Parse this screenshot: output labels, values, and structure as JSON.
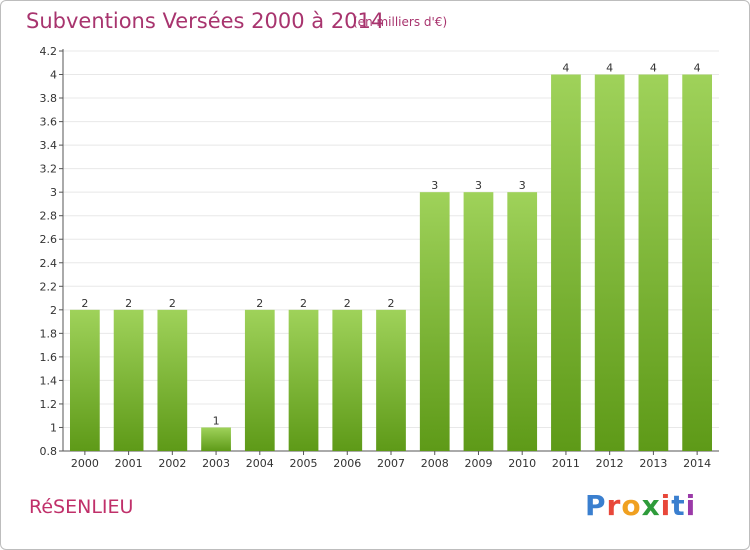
{
  "header": {
    "title": "Subventions Versées 2000 à 2014",
    "subtitle": "(en milliers d'€)"
  },
  "footer": {
    "commune": "RéSENLIEU",
    "logo_text": "Proxiti",
    "logo_colors": [
      "#3a7fcf",
      "#e8473a",
      "#f0a020",
      "#2e9b3a",
      "#e8473a",
      "#3a7fcf",
      "#9b3aa8"
    ]
  },
  "colors": {
    "bar_top": "#9fd25a",
    "bar_bottom": "#5e9a18",
    "title": "#a8346e",
    "grid": "#e8e8e8",
    "axis": "#555555"
  },
  "chart_data": {
    "type": "bar",
    "categories": [
      "2000",
      "2001",
      "2002",
      "2003",
      "2004",
      "2005",
      "2006",
      "2007",
      "2008",
      "2009",
      "2010",
      "2011",
      "2012",
      "2013",
      "2014"
    ],
    "values": [
      2,
      2,
      2,
      1,
      2,
      2,
      2,
      2,
      3,
      3,
      3,
      4,
      4,
      4,
      4
    ],
    "data_labels": [
      "2",
      "2",
      "2",
      "1",
      "2",
      "2",
      "2",
      "2",
      "3",
      "3",
      "3",
      "4",
      "4",
      "4",
      "4"
    ],
    "ylim": [
      0.8,
      4.2
    ],
    "yticks": [
      0.8,
      1,
      1.2,
      1.4,
      1.6,
      1.8,
      2,
      2.2,
      2.4,
      2.6,
      2.8,
      3,
      3.2,
      3.4,
      3.6,
      3.8,
      4,
      4.2
    ],
    "ytick_labels": [
      "0.8",
      "1",
      "1.2",
      "1.4",
      "1.6",
      "1.8",
      "2",
      "2.2",
      "2.4",
      "2.6",
      "2.8",
      "3",
      "3.2",
      "3.4",
      "3.6",
      "3.8",
      "4",
      "4.2"
    ],
    "grid": true,
    "legend": "none"
  }
}
